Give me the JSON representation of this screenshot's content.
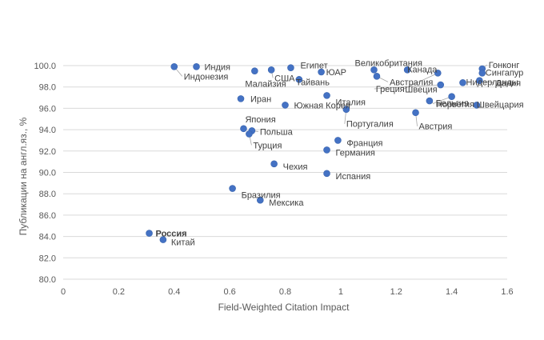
{
  "chart_data": {
    "type": "scatter",
    "title": "",
    "xlabel": "Field-Weighted Citation Impact",
    "ylabel": "Публикации на англ.яз., %",
    "xlim": [
      0,
      1.6
    ],
    "ylim": [
      80,
      100
    ],
    "xticks": [
      "0",
      "0.2",
      "0.4",
      "0.6",
      "0.8",
      "1",
      "1.2",
      "1.4",
      "1.6"
    ],
    "yticks": [
      "80.0",
      "82.0",
      "84.0",
      "86.0",
      "88.0",
      "90.0",
      "92.0",
      "94.0",
      "96.0",
      "98.0",
      "100.0"
    ],
    "grid": "horizontal",
    "color": "#4472c4",
    "points": [
      {
        "label": "Индия",
        "x": 0.48,
        "y": 99.9
      },
      {
        "label": "Индонезия",
        "x": 0.4,
        "y": 99.9
      },
      {
        "label": "Египет",
        "x": 0.82,
        "y": 99.8
      },
      {
        "label": "США",
        "x": 0.75,
        "y": 99.6
      },
      {
        "label": "Малайзия",
        "x": 0.69,
        "y": 99.5
      },
      {
        "label": "ЮАР",
        "x": 0.93,
        "y": 99.4
      },
      {
        "label": "Тайвань",
        "x": 0.85,
        "y": 98.7
      },
      {
        "label": "Великобритания",
        "x": 1.12,
        "y": 99.6
      },
      {
        "label": "Канада",
        "x": 1.24,
        "y": 99.6
      },
      {
        "label": "Австралия",
        "x": 1.13,
        "y": 99.0
      },
      {
        "label": "Гонконг",
        "x": 1.51,
        "y": 99.7
      },
      {
        "label": "Сингапур",
        "x": 1.51,
        "y": 99.3
      },
      {
        "label": "Дания",
        "x": 1.5,
        "y": 98.6
      },
      {
        "label": "Греция",
        "x": 1.36,
        "y": 98.2
      },
      {
        "label": "Швеция",
        "x": 1.35,
        "y": 99.3
      },
      {
        "label": "Нидерланды",
        "x": 1.44,
        "y": 98.4
      },
      {
        "label": "Бельгия",
        "x": 1.4,
        "y": 97.1
      },
      {
        "label": "Швейцария",
        "x": 1.49,
        "y": 96.3
      },
      {
        "label": "Норвегия",
        "x": 1.32,
        "y": 96.7
      },
      {
        "label": "Австрия",
        "x": 1.27,
        "y": 95.6
      },
      {
        "label": "Италия",
        "x": 0.95,
        "y": 97.2
      },
      {
        "label": "Иран",
        "x": 0.64,
        "y": 96.9
      },
      {
        "label": "Южная Корея",
        "x": 0.8,
        "y": 96.3
      },
      {
        "label": "Португалия",
        "x": 1.02,
        "y": 95.9
      },
      {
        "label": "Япония",
        "x": 0.65,
        "y": 94.1
      },
      {
        "label": "Польша",
        "x": 0.68,
        "y": 93.9
      },
      {
        "label": "Турция",
        "x": 0.67,
        "y": 93.6
      },
      {
        "label": "Франция",
        "x": 0.99,
        "y": 93.0
      },
      {
        "label": "Германия",
        "x": 0.95,
        "y": 92.1
      },
      {
        "label": "Чехия",
        "x": 0.76,
        "y": 90.8
      },
      {
        "label": "Испания",
        "x": 0.95,
        "y": 89.9
      },
      {
        "label": "Бразилия",
        "x": 0.61,
        "y": 88.5
      },
      {
        "label": "Мексика",
        "x": 0.71,
        "y": 87.4
      },
      {
        "label": "Россия",
        "x": 0.31,
        "y": 84.3,
        "emphasis": "bold"
      },
      {
        "label": "Китай",
        "x": 0.36,
        "y": 83.7
      }
    ]
  }
}
